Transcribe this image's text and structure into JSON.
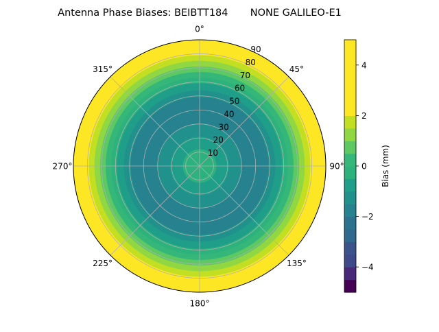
{
  "chart_data": {
    "type": "polar-contour",
    "title": "Antenna Phase Biases: BEIBTT184       NONE GALILEO-E1",
    "radial_ticks": [
      "10",
      "20",
      "30",
      "40",
      "50",
      "60",
      "70",
      "80",
      "90"
    ],
    "radial_range": [
      0,
      90
    ],
    "angle_ticks": [
      {
        "deg": 0,
        "label": "0°"
      },
      {
        "deg": 45,
        "label": "45°"
      },
      {
        "deg": 90,
        "label": "90°"
      },
      {
        "deg": 135,
        "label": "135°"
      },
      {
        "deg": 180,
        "label": "180°"
      },
      {
        "deg": 225,
        "label": "225°"
      },
      {
        "deg": 270,
        "label": "270°"
      },
      {
        "deg": 315,
        "label": "315°"
      }
    ],
    "colorbar": {
      "label": "Bias (mm)",
      "range": [
        -5,
        5
      ],
      "ticks": [
        "−4",
        "−2",
        "0",
        "2",
        "4"
      ],
      "levels": [
        -5,
        -4.5,
        -4,
        -3.5,
        -3,
        -2.5,
        -2,
        -1.5,
        -1,
        -0.5,
        0,
        0.5,
        1,
        1.5,
        2,
        2.5,
        3,
        3.5,
        4,
        4.5,
        5
      ],
      "level_colors": [
        "#440154",
        "#482878",
        "#3e4989",
        "#3b528b",
        "#31688e",
        "#2c728e",
        "#26828e",
        "#21918c",
        "#1f9e89",
        "#2db27d",
        "#35b779",
        "#5ec962",
        "#90d743",
        "#c2df23",
        "#fde725"
      ]
    },
    "grid": true,
    "bias_field": [
      {
        "elev": 0,
        "bias": 3.5
      },
      {
        "elev": 10,
        "bias": 2.0
      },
      {
        "elev": 20,
        "bias": 0.8
      },
      {
        "elev": 30,
        "bias": -0.5
      },
      {
        "elev": 40,
        "bias": -1.5
      },
      {
        "elev": 50,
        "bias": -2.0
      },
      {
        "elev": 60,
        "bias": -1.5
      },
      {
        "elev": 70,
        "bias": -0.9
      },
      {
        "elev": 80,
        "bias": -0.4
      },
      {
        "elev": 90,
        "bias": -0.2
      }
    ]
  }
}
